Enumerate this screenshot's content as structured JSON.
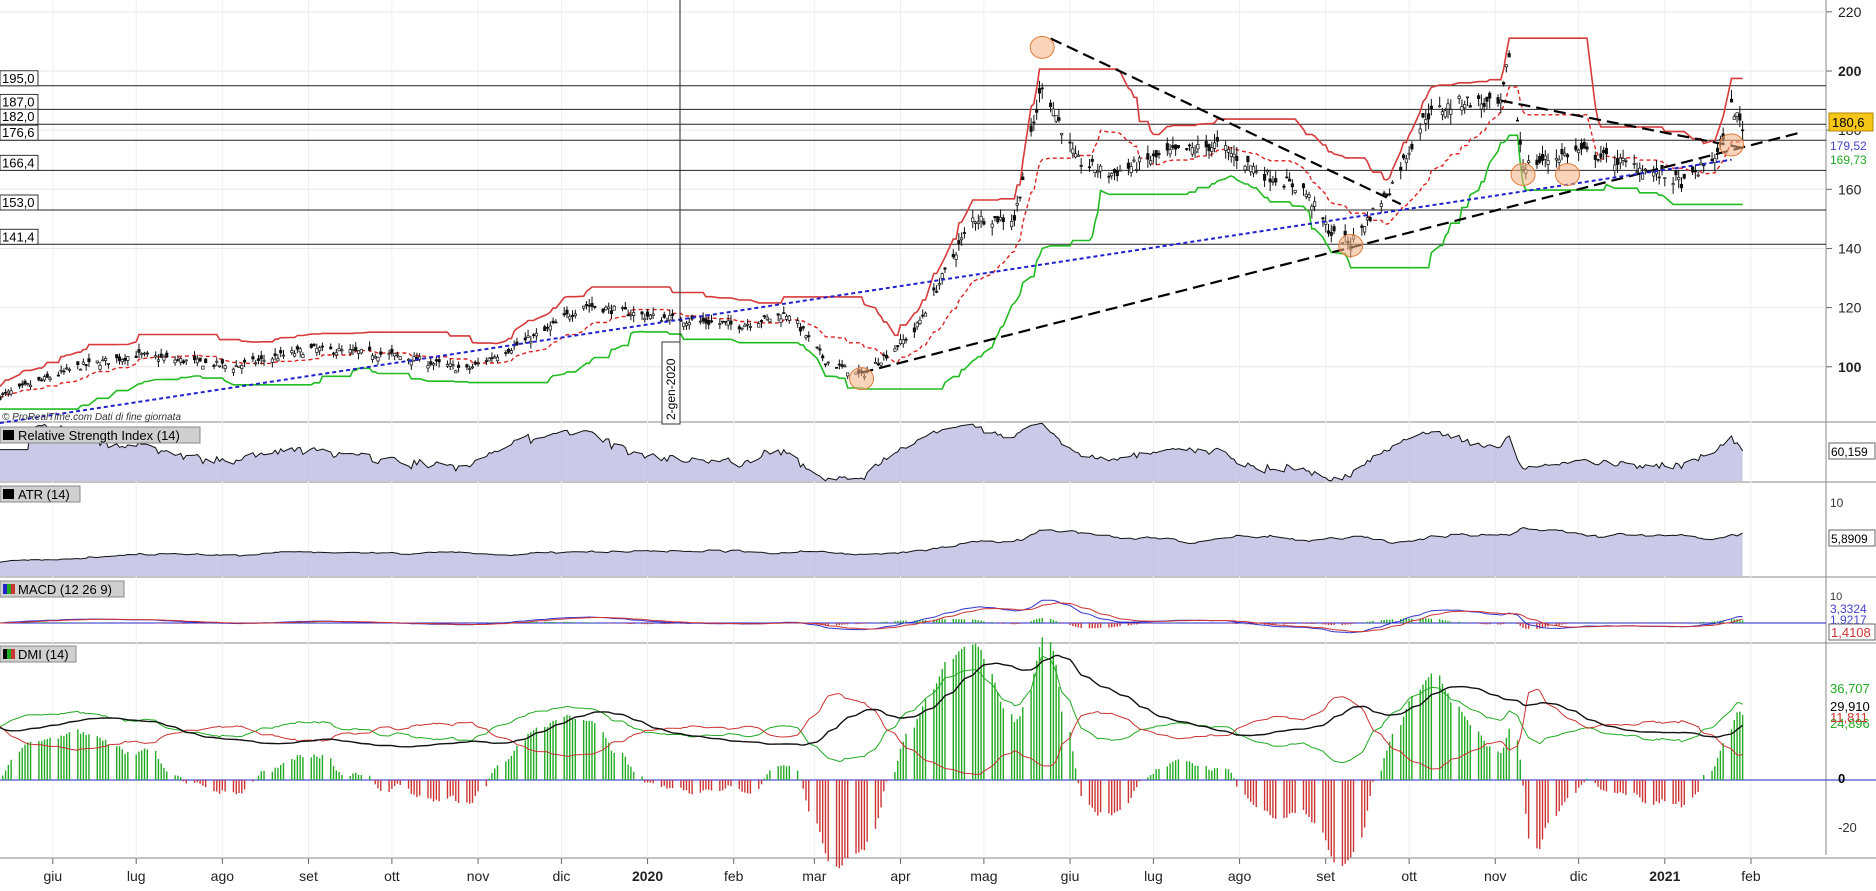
{
  "chart_data": {
    "type": "candlestick",
    "credit": "© ProRealTime.com  Dati di fine giornata",
    "date_label": "2-gen-2020",
    "x_ticks": [
      "giu",
      "lug",
      "ago",
      "set",
      "ott",
      "nov",
      "dic",
      "2020",
      "feb",
      "mar",
      "apr",
      "mag",
      "giu",
      "lug",
      "ago",
      "set",
      "ott",
      "nov",
      "dic",
      "2021",
      "feb"
    ],
    "x_ticks_bold": [
      "2020",
      "2021"
    ],
    "price": {
      "y_ticks": [
        100,
        120,
        140,
        160,
        180,
        200,
        220
      ],
      "ylim": [
        82,
        224
      ],
      "last_price": "180,6",
      "side_values": [
        {
          "text": "179,52",
          "color": "#4444cc"
        },
        {
          "text": "169,73",
          "color": "#22aa22"
        }
      ],
      "horizontal_levels": [
        {
          "value": 195.0,
          "label": "195,0"
        },
        {
          "value": 187.0,
          "label": "187,0"
        },
        {
          "value": 182.0,
          "label": "182,0"
        },
        {
          "value": 176.6,
          "label": "176,6"
        },
        {
          "value": 166.4,
          "label": "166,4"
        },
        {
          "value": 153.0,
          "label": "153,0"
        },
        {
          "value": 141.4,
          "label": "141,4"
        }
      ],
      "close_series": {
        "start": "2019-05-13",
        "end": "2021-01-29",
        "anchors": [
          [
            "2019-05-13",
            90
          ],
          [
            "2019-06-10",
            100
          ],
          [
            "2019-07-01",
            104
          ],
          [
            "2019-08-05",
            100
          ],
          [
            "2019-09-02",
            106
          ],
          [
            "2019-10-01",
            104
          ],
          [
            "2019-10-28",
            99
          ],
          [
            "2019-11-25",
            112
          ],
          [
            "2019-12-09",
            121
          ],
          [
            "2020-01-02",
            117
          ],
          [
            "2020-02-03",
            114
          ],
          [
            "2020-02-21",
            118
          ],
          [
            "2020-03-05",
            102
          ],
          [
            "2020-03-18",
            97
          ],
          [
            "2020-04-06",
            112
          ],
          [
            "2020-04-27",
            150
          ],
          [
            "2020-05-12",
            150
          ],
          [
            "2020-05-22",
            196
          ],
          [
            "2020-06-03",
            170
          ],
          [
            "2020-06-15",
            165
          ],
          [
            "2020-07-06",
            172
          ],
          [
            "2020-07-24",
            175
          ],
          [
            "2020-08-10",
            165
          ],
          [
            "2020-08-24",
            160
          ],
          [
            "2020-09-03",
            145
          ],
          [
            "2020-09-10",
            142
          ],
          [
            "2020-09-24",
            160
          ],
          [
            "2020-10-07",
            185
          ],
          [
            "2020-10-21",
            190
          ],
          [
            "2020-11-03",
            188
          ],
          [
            "2020-11-06",
            206
          ],
          [
            "2020-11-11",
            168
          ],
          [
            "2020-12-01",
            173
          ],
          [
            "2020-12-21",
            168
          ],
          [
            "2021-01-08",
            162
          ],
          [
            "2021-01-20",
            172
          ],
          [
            "2021-01-25",
            188
          ],
          [
            "2021-01-29",
            181
          ]
        ]
      },
      "events": [
        {
          "date": "2020-03-18",
          "price": 96
        },
        {
          "date": "2020-05-22",
          "price": 208
        },
        {
          "date": "2020-09-10",
          "price": 141
        },
        {
          "date": "2020-11-11",
          "price": 165
        },
        {
          "date": "2020-11-27",
          "price": 165
        },
        {
          "date": "2021-01-25",
          "price": 175
        }
      ],
      "trendlines": [
        {
          "from": [
            "2020-03-18",
            98
          ],
          "to": [
            "2021-02-18",
            179
          ]
        },
        {
          "from": [
            "2020-05-25",
            211
          ],
          "to": [
            "2020-09-28",
            155
          ]
        },
        {
          "from": [
            "2020-11-03",
            190
          ],
          "to": [
            "2021-01-29",
            174
          ]
        },
        {
          "from": [
            "2019-05-13",
            81
          ],
          "to": [
            "2021-01-25",
            170
          ]
        }
      ]
    },
    "rsi": {
      "title": "Relative Strength Index (14)",
      "last_value": "60,159"
    },
    "atr": {
      "title": "ATR (14)",
      "ticks": [
        5,
        10
      ],
      "last_value": "5,8909"
    },
    "macd": {
      "title": "MACD (12 26 9)",
      "ticks": [
        10
      ],
      "values": [
        "3,3324",
        "1,9217",
        "1,4108"
      ]
    },
    "dmi": {
      "title": "DMI (14)",
      "ticks": [
        0,
        -20
      ],
      "values": [
        "36,707",
        "29,910",
        "24,896",
        "11,811"
      ]
    },
    "colors": {
      "candle_up": "#111111",
      "upper_band": "#d63a3a",
      "lower_band": "#22bb22",
      "mid_dashed": "#dd2222",
      "blue_trend": "#2222cc",
      "rsi_fill": "#b8b8e0",
      "last_price_bg": "#f5c518",
      "dmi_plus": "#22aa22",
      "dmi_minus": "#cc3333",
      "event_circle": "#f4b183"
    }
  }
}
